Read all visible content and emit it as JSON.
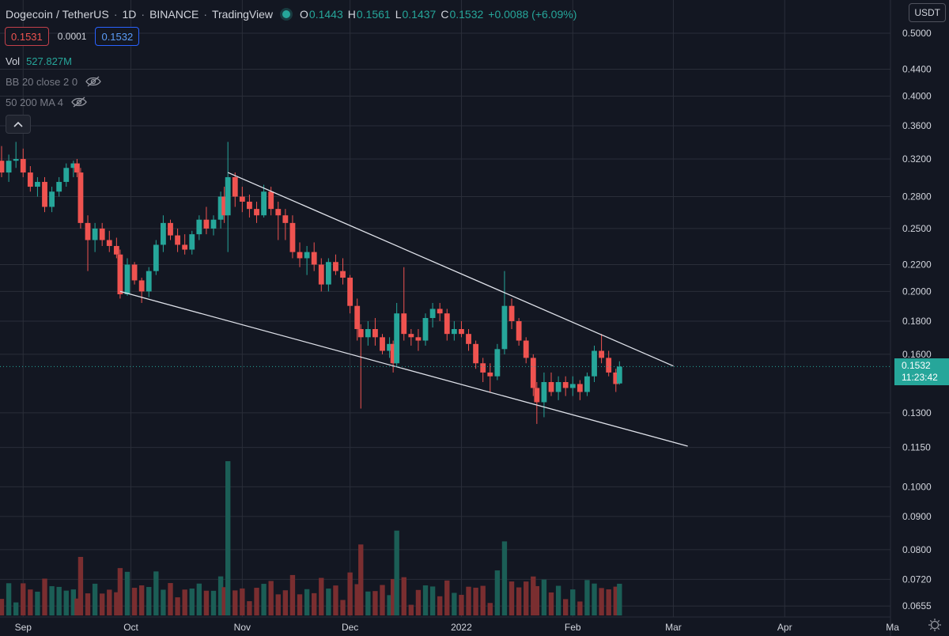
{
  "header": {
    "symbol": "Dogecoin / TetherUS",
    "interval": "1D",
    "exchange": "BINANCE",
    "source": "TradingView",
    "open_label": "O",
    "open": "0.1443",
    "high_label": "H",
    "high": "0.1561",
    "low_label": "L",
    "low": "0.1437",
    "close_label": "C",
    "close": "0.1532",
    "change": "+0.0088 (+6.09%)"
  },
  "trade": {
    "sell_price": "0.1531",
    "spread": "0.0001",
    "buy_price": "0.1532"
  },
  "indicators": {
    "volume_label": "Vol",
    "volume_value": "527.827M",
    "bb": "BB 20 close 2 0",
    "ma": "50 200 MA 4"
  },
  "price_axis": {
    "currency": "USDT"
  },
  "last_price": {
    "value": "0.1532",
    "countdown": "11:23:42"
  },
  "colors": {
    "background": "#131722",
    "up": "#26a69a",
    "down": "#ef5350",
    "grid": "#2a2e39",
    "trendline": "#e0e3eb",
    "volume_up": "#1b5e56",
    "volume_down": "#7a2e30"
  },
  "chart_data": {
    "type": "candlestick",
    "scale": "log",
    "ylim": [
      0.063,
      0.55
    ],
    "x_range": [
      "2021-08-26",
      "2022-04-30"
    ],
    "y_ticks": [
      "0.5000",
      "0.4400",
      "0.4000",
      "0.3600",
      "0.3200",
      "0.2800",
      "0.2500",
      "0.2200",
      "0.2000",
      "0.1800",
      "0.1600",
      "0.1300",
      "0.1150",
      "0.1000",
      "0.0900",
      "0.0800",
      "0.0720",
      "0.0655"
    ],
    "x_ticks": [
      {
        "label": "Sep",
        "date": "2021-09-01"
      },
      {
        "label": "Oct",
        "date": "2021-10-01"
      },
      {
        "label": "Nov",
        "date": "2021-11-01"
      },
      {
        "label": "Dec",
        "date": "2021-12-01"
      },
      {
        "label": "2022",
        "date": "2022-01-01"
      },
      {
        "label": "Feb",
        "date": "2022-02-01"
      },
      {
        "label": "Mar",
        "date": "2022-03-01"
      },
      {
        "label": "Apr",
        "date": "2022-04-01"
      },
      {
        "label": "Ma",
        "date": "2022-05-01"
      }
    ],
    "ohlc": [
      [
        "2021-08-26",
        0.318,
        0.335,
        0.3,
        0.305
      ],
      [
        "2021-08-28",
        0.305,
        0.325,
        0.295,
        0.318
      ],
      [
        "2021-08-30",
        0.318,
        0.34,
        0.31,
        0.32
      ],
      [
        "2021-09-01",
        0.32,
        0.332,
        0.3,
        0.305
      ],
      [
        "2021-09-03",
        0.305,
        0.312,
        0.285,
        0.29
      ],
      [
        "2021-09-05",
        0.29,
        0.3,
        0.28,
        0.295
      ],
      [
        "2021-09-07",
        0.295,
        0.3,
        0.265,
        0.27
      ],
      [
        "2021-09-09",
        0.27,
        0.29,
        0.265,
        0.285
      ],
      [
        "2021-09-11",
        0.285,
        0.3,
        0.28,
        0.295
      ],
      [
        "2021-09-13",
        0.295,
        0.315,
        0.29,
        0.31
      ],
      [
        "2021-09-15",
        0.31,
        0.318,
        0.3,
        0.315
      ],
      [
        "2021-09-16",
        0.315,
        0.32,
        0.3,
        0.305
      ],
      [
        "2021-09-17",
        0.305,
        0.31,
        0.25,
        0.255
      ],
      [
        "2021-09-19",
        0.255,
        0.262,
        0.215,
        0.24
      ],
      [
        "2021-09-21",
        0.24,
        0.255,
        0.23,
        0.25
      ],
      [
        "2021-09-23",
        0.25,
        0.255,
        0.235,
        0.24
      ],
      [
        "2021-09-25",
        0.24,
        0.248,
        0.23,
        0.235
      ],
      [
        "2021-09-27",
        0.235,
        0.242,
        0.225,
        0.228
      ],
      [
        "2021-09-28",
        0.228,
        0.232,
        0.195,
        0.198
      ],
      [
        "2021-09-30",
        0.198,
        0.225,
        0.197,
        0.22
      ],
      [
        "2021-10-02",
        0.22,
        0.222,
        0.205,
        0.208
      ],
      [
        "2021-10-04",
        0.208,
        0.21,
        0.192,
        0.2
      ],
      [
        "2021-10-06",
        0.2,
        0.218,
        0.196,
        0.215
      ],
      [
        "2021-10-08",
        0.215,
        0.24,
        0.212,
        0.236
      ],
      [
        "2021-10-10",
        0.236,
        0.262,
        0.23,
        0.255
      ],
      [
        "2021-10-12",
        0.255,
        0.258,
        0.24,
        0.244
      ],
      [
        "2021-10-14",
        0.244,
        0.25,
        0.23,
        0.236
      ],
      [
        "2021-10-16",
        0.236,
        0.245,
        0.228,
        0.232
      ],
      [
        "2021-10-18",
        0.232,
        0.248,
        0.228,
        0.245
      ],
      [
        "2021-10-20",
        0.245,
        0.262,
        0.24,
        0.258
      ],
      [
        "2021-10-22",
        0.258,
        0.27,
        0.245,
        0.25
      ],
      [
        "2021-10-24",
        0.25,
        0.262,
        0.244,
        0.258
      ],
      [
        "2021-10-26",
        0.258,
        0.285,
        0.25,
        0.28
      ],
      [
        "2021-10-27",
        0.28,
        0.29,
        0.255,
        0.262
      ],
      [
        "2021-10-28",
        0.262,
        0.34,
        0.23,
        0.3
      ],
      [
        "2021-10-30",
        0.3,
        0.305,
        0.27,
        0.28
      ],
      [
        "2021-11-01",
        0.28,
        0.29,
        0.265,
        0.275
      ],
      [
        "2021-11-03",
        0.275,
        0.282,
        0.26,
        0.268
      ],
      [
        "2021-11-05",
        0.268,
        0.275,
        0.255,
        0.262
      ],
      [
        "2021-11-07",
        0.262,
        0.292,
        0.26,
        0.285
      ],
      [
        "2021-11-09",
        0.285,
        0.29,
        0.262,
        0.268
      ],
      [
        "2021-11-11",
        0.268,
        0.275,
        0.24,
        0.262
      ],
      [
        "2021-11-13",
        0.262,
        0.268,
        0.24,
        0.255
      ],
      [
        "2021-11-15",
        0.255,
        0.262,
        0.225,
        0.23
      ],
      [
        "2021-11-17",
        0.23,
        0.238,
        0.218,
        0.225
      ],
      [
        "2021-11-19",
        0.225,
        0.235,
        0.212,
        0.23
      ],
      [
        "2021-11-21",
        0.23,
        0.238,
        0.215,
        0.22
      ],
      [
        "2021-11-23",
        0.22,
        0.225,
        0.2,
        0.205
      ],
      [
        "2021-11-25",
        0.205,
        0.225,
        0.2,
        0.222
      ],
      [
        "2021-11-27",
        0.222,
        0.228,
        0.212,
        0.215
      ],
      [
        "2021-11-29",
        0.215,
        0.225,
        0.205,
        0.21
      ],
      [
        "2021-12-01",
        0.21,
        0.212,
        0.185,
        0.19
      ],
      [
        "2021-12-03",
        0.19,
        0.195,
        0.168,
        0.175
      ],
      [
        "2021-12-04",
        0.175,
        0.178,
        0.132,
        0.17
      ],
      [
        "2021-12-06",
        0.17,
        0.18,
        0.165,
        0.175
      ],
      [
        "2021-12-08",
        0.175,
        0.182,
        0.165,
        0.17
      ],
      [
        "2021-12-10",
        0.17,
        0.172,
        0.16,
        0.162
      ],
      [
        "2021-12-12",
        0.162,
        0.17,
        0.158,
        0.166
      ],
      [
        "2021-12-13",
        0.166,
        0.168,
        0.15,
        0.155
      ],
      [
        "2021-12-14",
        0.155,
        0.192,
        0.153,
        0.185
      ],
      [
        "2021-12-16",
        0.185,
        0.218,
        0.168,
        0.172
      ],
      [
        "2021-12-18",
        0.172,
        0.175,
        0.165,
        0.17
      ],
      [
        "2021-12-20",
        0.17,
        0.175,
        0.162,
        0.168
      ],
      [
        "2021-12-22",
        0.168,
        0.185,
        0.165,
        0.182
      ],
      [
        "2021-12-24",
        0.182,
        0.192,
        0.176,
        0.188
      ],
      [
        "2021-12-26",
        0.188,
        0.192,
        0.18,
        0.185
      ],
      [
        "2021-12-28",
        0.185,
        0.188,
        0.168,
        0.172
      ],
      [
        "2021-12-30",
        0.172,
        0.18,
        0.168,
        0.175
      ],
      [
        "2022-01-01",
        0.175,
        0.18,
        0.17,
        0.172
      ],
      [
        "2022-01-03",
        0.172,
        0.175,
        0.162,
        0.166
      ],
      [
        "2022-01-05",
        0.166,
        0.168,
        0.152,
        0.155
      ],
      [
        "2022-01-07",
        0.155,
        0.158,
        0.145,
        0.15
      ],
      [
        "2022-01-09",
        0.15,
        0.155,
        0.14,
        0.148
      ],
      [
        "2022-01-11",
        0.148,
        0.166,
        0.146,
        0.163
      ],
      [
        "2022-01-13",
        0.163,
        0.215,
        0.16,
        0.19
      ],
      [
        "2022-01-15",
        0.19,
        0.195,
        0.175,
        0.18
      ],
      [
        "2022-01-17",
        0.18,
        0.182,
        0.165,
        0.168
      ],
      [
        "2022-01-19",
        0.168,
        0.17,
        0.155,
        0.158
      ],
      [
        "2022-01-21",
        0.158,
        0.16,
        0.138,
        0.142
      ],
      [
        "2022-01-22",
        0.142,
        0.145,
        0.125,
        0.135
      ],
      [
        "2022-01-24",
        0.135,
        0.15,
        0.128,
        0.145
      ],
      [
        "2022-01-26",
        0.145,
        0.15,
        0.138,
        0.14
      ],
      [
        "2022-01-28",
        0.14,
        0.148,
        0.136,
        0.145
      ],
      [
        "2022-01-30",
        0.145,
        0.148,
        0.138,
        0.142
      ],
      [
        "2022-02-01",
        0.142,
        0.148,
        0.138,
        0.144
      ],
      [
        "2022-02-03",
        0.144,
        0.146,
        0.136,
        0.14
      ],
      [
        "2022-02-05",
        0.14,
        0.15,
        0.138,
        0.148
      ],
      [
        "2022-02-07",
        0.148,
        0.165,
        0.145,
        0.162
      ],
      [
        "2022-02-09",
        0.162,
        0.172,
        0.155,
        0.158
      ],
      [
        "2022-02-11",
        0.158,
        0.162,
        0.148,
        0.15
      ],
      [
        "2022-02-13",
        0.15,
        0.152,
        0.14,
        0.144
      ],
      [
        "2022-02-14",
        0.1443,
        0.1561,
        0.1437,
        0.1532
      ]
    ],
    "volume_peaks": [
      {
        "date": "2021-10-28",
        "relative": 1.0
      },
      {
        "date": "2021-12-14",
        "relative": 0.55
      },
      {
        "date": "2021-12-04",
        "relative": 0.46
      },
      {
        "date": "2022-01-13",
        "relative": 0.48
      }
    ],
    "trendlines": [
      {
        "from": [
          "2021-10-28",
          0.305
        ],
        "to": [
          "2022-03-01",
          0.1535
        ]
      },
      {
        "from": [
          "2021-09-28",
          0.2
        ],
        "to": [
          "2022-03-05",
          0.1155
        ]
      }
    ]
  }
}
